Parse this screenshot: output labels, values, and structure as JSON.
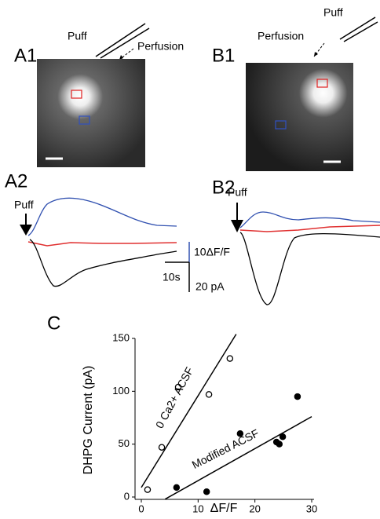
{
  "panels": {
    "A1": {
      "label": "A1",
      "puff": "Puff",
      "perfusion": "Perfusion"
    },
    "B1": {
      "label": "B1",
      "puff": "Puff",
      "perfusion": "Perfusion"
    },
    "A2": {
      "label": "A2",
      "puff": "Puff"
    },
    "B2": {
      "label": "B2",
      "puff": "Puff"
    }
  },
  "scale_bars": {
    "fluorescence": "10ΔF/F",
    "time": "10s",
    "current": "20 pA"
  },
  "chart_data": {
    "type": "scatter",
    "panel_label": "C",
    "x_label": "ΔF/F",
    "y_label": "DHPG Current (pA)",
    "xlim": [
      0,
      30
    ],
    "ylim": [
      0,
      150
    ],
    "xticks": [
      0,
      10,
      20,
      30
    ],
    "yticks": [
      0,
      50,
      100,
      150
    ],
    "series": [
      {
        "name": "0 Ca2+ ACSF",
        "marker": "open",
        "color": "#000000",
        "x": [
          1.1,
          3.6,
          6.5,
          11.9,
          15.6
        ],
        "values": [
          7,
          47,
          104,
          97,
          131
        ],
        "fit": {
          "x": [
            0,
            16.7
          ],
          "y": [
            9,
            154
          ]
        }
      },
      {
        "name": "Modified ACSF",
        "marker": "filled",
        "color": "#000000",
        "x": [
          6.2,
          11.5,
          17.4,
          23.8,
          24.3,
          24.9,
          27.5
        ],
        "values": [
          9,
          5,
          60,
          52,
          50,
          57,
          95
        ],
        "fit": {
          "x": [
            4.2,
            30
          ],
          "y": [
            -2,
            76
          ]
        }
      }
    ]
  }
}
